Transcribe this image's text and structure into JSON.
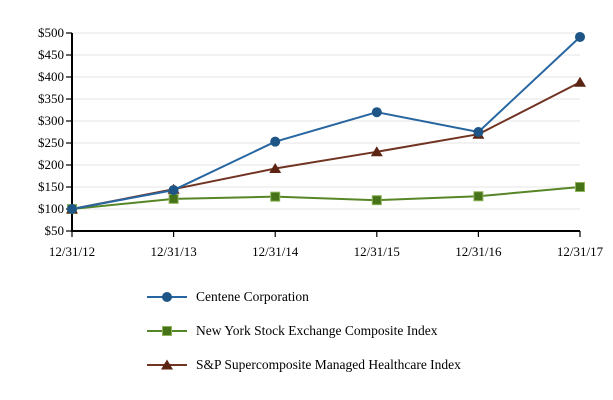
{
  "chart_data": {
    "type": "line",
    "title": "",
    "xlabel": "",
    "ylabel": "",
    "categories": [
      "12/31/12",
      "12/31/13",
      "12/31/14",
      "12/31/15",
      "12/31/16",
      "12/31/17"
    ],
    "series": [
      {
        "name": "Centene Corporation",
        "marker": "circle",
        "line_color": "#2766A0",
        "marker_color": "#1D5586",
        "values": [
          100,
          143,
          253,
          320,
          275,
          491
        ]
      },
      {
        "name": "New York Stock Exchange Composite Index",
        "marker": "square",
        "line_color": "#578627",
        "marker_color": "#467318",
        "marker_stroke": "#8FB35A",
        "values": [
          100,
          123,
          128,
          120,
          129,
          150
        ]
      },
      {
        "name": "S&P Supercomposite Managed Healthcare Index",
        "marker": "triangle",
        "line_color": "#713322",
        "marker_color": "#5C2413",
        "values": [
          100,
          145,
          192,
          230,
          270,
          388
        ]
      }
    ],
    "ylim": [
      50,
      500
    ],
    "ytick_step": 50,
    "ytick_prefix": "$",
    "grid": true,
    "legend_position": "bottom-left"
  },
  "colors": {
    "axis": "#000000",
    "gridline": "#E5E5E5",
    "text": "#000000",
    "background": "#FFFFFF"
  }
}
